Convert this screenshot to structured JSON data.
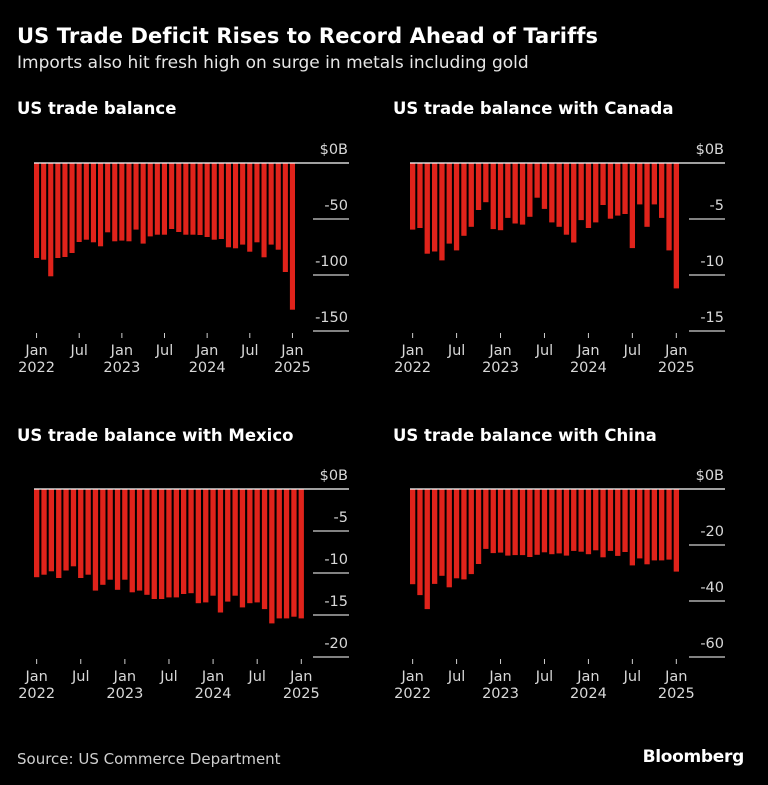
{
  "header": {
    "title": "US Trade Deficit Rises to Record Ahead of Tariffs",
    "subtitle": "Imports also hit fresh high on surge in metals including gold"
  },
  "footer": {
    "source": "Source: US Commerce Department",
    "logo": "Bloomberg"
  },
  "colors": {
    "bar": "#e0231b",
    "background": "#000000",
    "axis": "#ffffff"
  },
  "chart_data": [
    {
      "type": "bar",
      "title": "US trade balance",
      "unit": "$B",
      "x_start": "Jan 2022",
      "x_end": "Jan 2025",
      "frequency": "monthly",
      "xticks": [
        {
          "m": "Jan",
          "y": "2022"
        },
        {
          "m": "Jul",
          "y": ""
        },
        {
          "m": "Jan",
          "y": "2023"
        },
        {
          "m": "Jul",
          "y": ""
        },
        {
          "m": "Jan",
          "y": "2024"
        },
        {
          "m": "Jul",
          "y": ""
        },
        {
          "m": "Jan",
          "y": "2025"
        }
      ],
      "yticks": [
        {
          "v": 0,
          "label": "$0B"
        },
        {
          "v": -50,
          "label": "-50"
        },
        {
          "v": -100,
          "label": "-100"
        },
        {
          "v": -150,
          "label": "-150"
        }
      ],
      "ylim": [
        -150,
        0
      ],
      "values": [
        -84.8,
        -86.3,
        -101.2,
        -84.8,
        -83.9,
        -80.4,
        -70.5,
        -68.5,
        -70.8,
        -74.4,
        -61.9,
        -69.9,
        -69.3,
        -69.9,
        -59.5,
        -72.0,
        -65.5,
        -64.0,
        -64.0,
        -58.9,
        -61.6,
        -64.0,
        -64.0,
        -64.3,
        -66.1,
        -68.5,
        -67.9,
        -75.3,
        -76.2,
        -72.9,
        -79.2,
        -70.8,
        -84.2,
        -72.9,
        -77.4,
        -97.3,
        -131.0
      ]
    },
    {
      "type": "bar",
      "title": "US trade balance with Canada",
      "unit": "$B",
      "x_start": "Jan 2022",
      "x_end": "Jan 2025",
      "frequency": "monthly",
      "xticks": [
        {
          "m": "Jan",
          "y": "2022"
        },
        {
          "m": "Jul",
          "y": ""
        },
        {
          "m": "Jan",
          "y": "2023"
        },
        {
          "m": "Jul",
          "y": ""
        },
        {
          "m": "Jan",
          "y": "2024"
        },
        {
          "m": "Jul",
          "y": ""
        },
        {
          "m": "Jan",
          "y": "2025"
        }
      ],
      "yticks": [
        {
          "v": 0,
          "label": "$0B"
        },
        {
          "v": -5,
          "label": "-5"
        },
        {
          "v": -10,
          "label": "-10"
        },
        {
          "v": -15,
          "label": "-15"
        }
      ],
      "ylim": [
        -15,
        0
      ],
      "values": [
        -5.95,
        -5.8,
        -8.1,
        -7.9,
        -8.7,
        -7.2,
        -7.8,
        -6.5,
        -5.7,
        -4.2,
        -3.5,
        -5.9,
        -6.0,
        -4.9,
        -5.4,
        -5.5,
        -4.8,
        -3.1,
        -4.1,
        -5.3,
        -5.7,
        -6.4,
        -7.1,
        -5.1,
        -5.8,
        -5.3,
        -3.75,
        -4.97,
        -4.7,
        -4.55,
        -7.6,
        -3.7,
        -5.7,
        -3.7,
        -4.9,
        -7.8,
        -11.2
      ]
    },
    {
      "type": "bar",
      "title": "US trade balance with Mexico",
      "unit": "$B",
      "x_start": "Jan 2022",
      "x_end": "Jan 2025",
      "frequency": "monthly",
      "xticks": [
        {
          "m": "Jan",
          "y": "2022"
        },
        {
          "m": "Jul",
          "y": ""
        },
        {
          "m": "Jan",
          "y": "2023"
        },
        {
          "m": "Jul",
          "y": ""
        },
        {
          "m": "Jan",
          "y": "2024"
        },
        {
          "m": "Jul",
          "y": ""
        },
        {
          "m": "Jan",
          "y": "2025"
        }
      ],
      "yticks": [
        {
          "v": 0,
          "label": "$0B"
        },
        {
          "v": -5,
          "label": "-5"
        },
        {
          "v": -10,
          "label": "-10"
        },
        {
          "v": -15,
          "label": "-15"
        },
        {
          "v": -20,
          "label": "-20"
        }
      ],
      "ylim": [
        -20,
        0
      ],
      "values": [
        -10.5,
        -10.2,
        -9.8,
        -10.6,
        -9.7,
        -9.2,
        -10.6,
        -10.2,
        -12.1,
        -11.4,
        -10.8,
        -12.0,
        -10.8,
        -12.3,
        -12.1,
        -12.6,
        -13.1,
        -13.1,
        -12.9,
        -12.9,
        -12.5,
        -12.4,
        -13.6,
        -13.5,
        -12.7,
        -14.7,
        -13.4,
        -12.7,
        -14.1,
        -13.6,
        -13.5,
        -14.3,
        -16.0,
        -15.4,
        -15.4,
        -15.2,
        -15.4
      ]
    },
    {
      "type": "bar",
      "title": "US trade balance with China",
      "unit": "$B",
      "x_start": "Jan 2022",
      "x_end": "Jan 2025",
      "frequency": "monthly",
      "xticks": [
        {
          "m": "Jan",
          "y": "2022"
        },
        {
          "m": "Jul",
          "y": ""
        },
        {
          "m": "Jan",
          "y": "2023"
        },
        {
          "m": "Jul",
          "y": ""
        },
        {
          "m": "Jan",
          "y": "2024"
        },
        {
          "m": "Jul",
          "y": ""
        },
        {
          "m": "Jan",
          "y": "2025"
        }
      ],
      "yticks": [
        {
          "v": 0,
          "label": "$0B"
        },
        {
          "v": -20,
          "label": "-20"
        },
        {
          "v": -40,
          "label": "-40"
        },
        {
          "v": -60,
          "label": "-60"
        }
      ],
      "ylim": [
        -60,
        0
      ],
      "values": [
        -34.0,
        -37.9,
        -42.9,
        -33.9,
        -31.0,
        -35.1,
        -31.9,
        -32.3,
        -30.4,
        -26.8,
        -21.4,
        -22.9,
        -22.7,
        -23.8,
        -23.6,
        -23.6,
        -24.3,
        -23.5,
        -22.6,
        -23.3,
        -23.0,
        -23.8,
        -22.1,
        -22.4,
        -23.3,
        -21.9,
        -24.4,
        -22.1,
        -23.9,
        -22.5,
        -27.3,
        -24.8,
        -26.9,
        -25.5,
        -25.5,
        -25.2,
        -29.5
      ]
    }
  ]
}
